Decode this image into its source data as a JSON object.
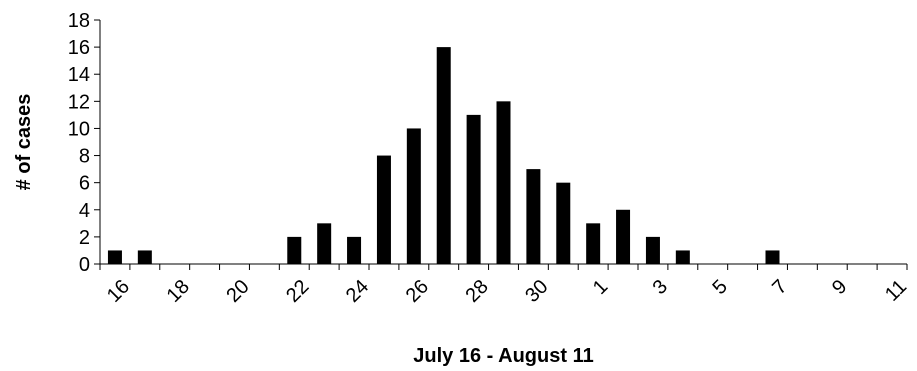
{
  "chart_data": {
    "type": "bar",
    "title": "",
    "xlabel": "July 16 - August 11",
    "ylabel": "# of cases",
    "ylim": [
      0,
      18
    ],
    "yticks": [
      0,
      2,
      4,
      6,
      8,
      10,
      12,
      14,
      16,
      18
    ],
    "grid": false,
    "legend": "none",
    "bar_color": "#000000",
    "categories": [
      "16",
      "17",
      "18",
      "19",
      "20",
      "21",
      "22",
      "23",
      "24",
      "25",
      "26",
      "27",
      "28",
      "29",
      "30",
      "31",
      "1",
      "2",
      "3",
      "4",
      "5",
      "6",
      "7",
      "8",
      "9",
      "10",
      "11"
    ],
    "values": [
      1,
      1,
      0,
      0,
      0,
      0,
      2,
      3,
      2,
      8,
      10,
      16,
      11,
      12,
      7,
      6,
      3,
      4,
      2,
      1,
      0,
      0,
      1,
      0,
      0,
      0,
      0
    ],
    "x_tick_labels": [
      "16",
      "18",
      "20",
      "22",
      "24",
      "26",
      "28",
      "30",
      "1",
      "3",
      "5",
      "7",
      "9",
      "11"
    ]
  }
}
